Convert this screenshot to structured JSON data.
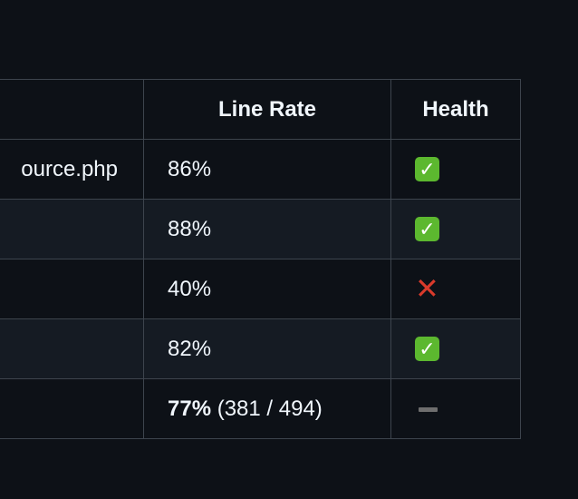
{
  "table": {
    "headers": [
      "",
      "Line Rate",
      "Health"
    ],
    "rows": [
      {
        "file": "ource.php",
        "line_rate": "86%",
        "health": "pass"
      },
      {
        "file": "",
        "line_rate": "88%",
        "health": "pass"
      },
      {
        "file": "",
        "line_rate": "40%",
        "health": "fail"
      },
      {
        "file": "",
        "line_rate": "82%",
        "health": "pass"
      }
    ],
    "summary": {
      "line_rate": "77%",
      "counts": "(381 / 494)",
      "health": "none"
    }
  },
  "icons": {
    "pass": "check-mark-button-icon",
    "fail": "cross-mark-icon",
    "none": "dash-icon"
  },
  "colors": {
    "background": "#0d1117",
    "alt_row": "#151b23",
    "border": "#3d444d",
    "pass": "#5cb82f",
    "fail": "#d93a2b"
  }
}
